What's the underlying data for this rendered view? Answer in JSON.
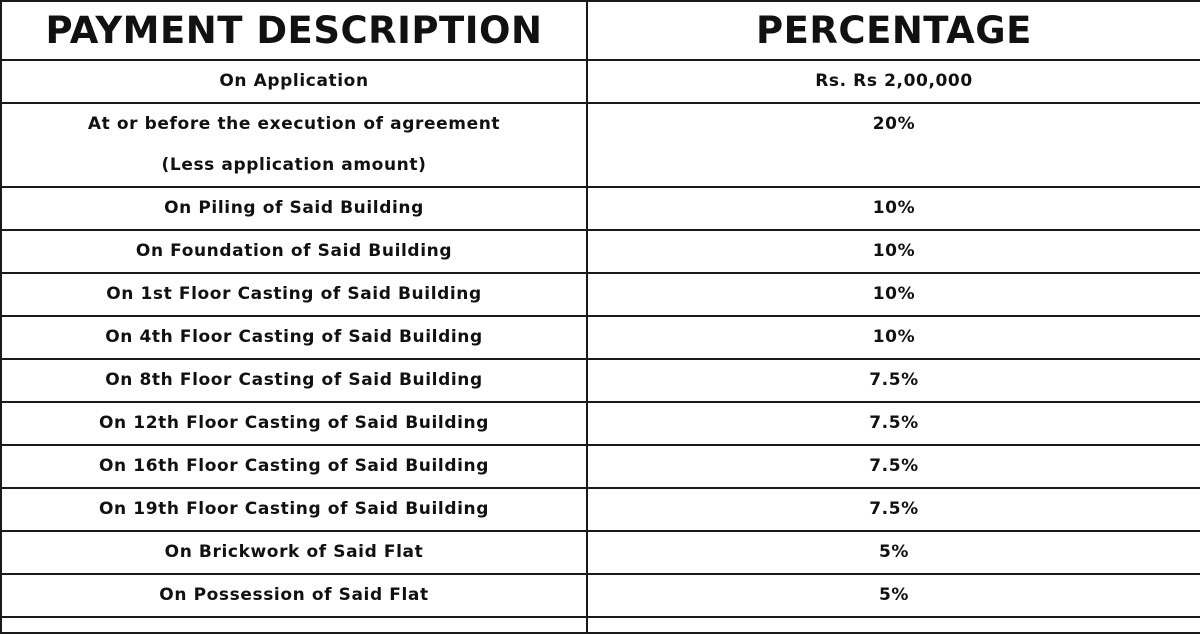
{
  "table": {
    "headers": {
      "description": "PAYMENT DESCRIPTION",
      "percentage": "PERCENTAGE"
    },
    "rows": [
      {
        "description": "On Application",
        "percentage": "Rs. Rs 2,00,000"
      },
      {
        "description_line1": "At or before the execution of agreement",
        "description_line2": "(Less application amount)",
        "percentage": "20%"
      },
      {
        "description": "On Piling of Said Building",
        "percentage": "10%"
      },
      {
        "description": "On Foundation of Said Building",
        "percentage": "10%"
      },
      {
        "description": "On 1st Floor Casting of Said Building",
        "percentage": "10%"
      },
      {
        "description": "On 4th Floor Casting of Said Building",
        "percentage": "10%"
      },
      {
        "description": "On 8th Floor Casting of Said Building",
        "percentage": "7.5%"
      },
      {
        "description": "On 12th Floor Casting of Said Building",
        "percentage": "7.5%"
      },
      {
        "description": "On 16th Floor Casting of Said Building",
        "percentage": "7.5%"
      },
      {
        "description": "On 19th Floor Casting of Said Building",
        "percentage": "7.5%"
      },
      {
        "description": "On Brickwork of Said Flat",
        "percentage": "5%"
      },
      {
        "description": "On Possession of Said Flat",
        "percentage": "5%"
      }
    ]
  },
  "colors": {
    "border": "#1a1a1a",
    "text": "#111111",
    "background": "#ffffff"
  }
}
